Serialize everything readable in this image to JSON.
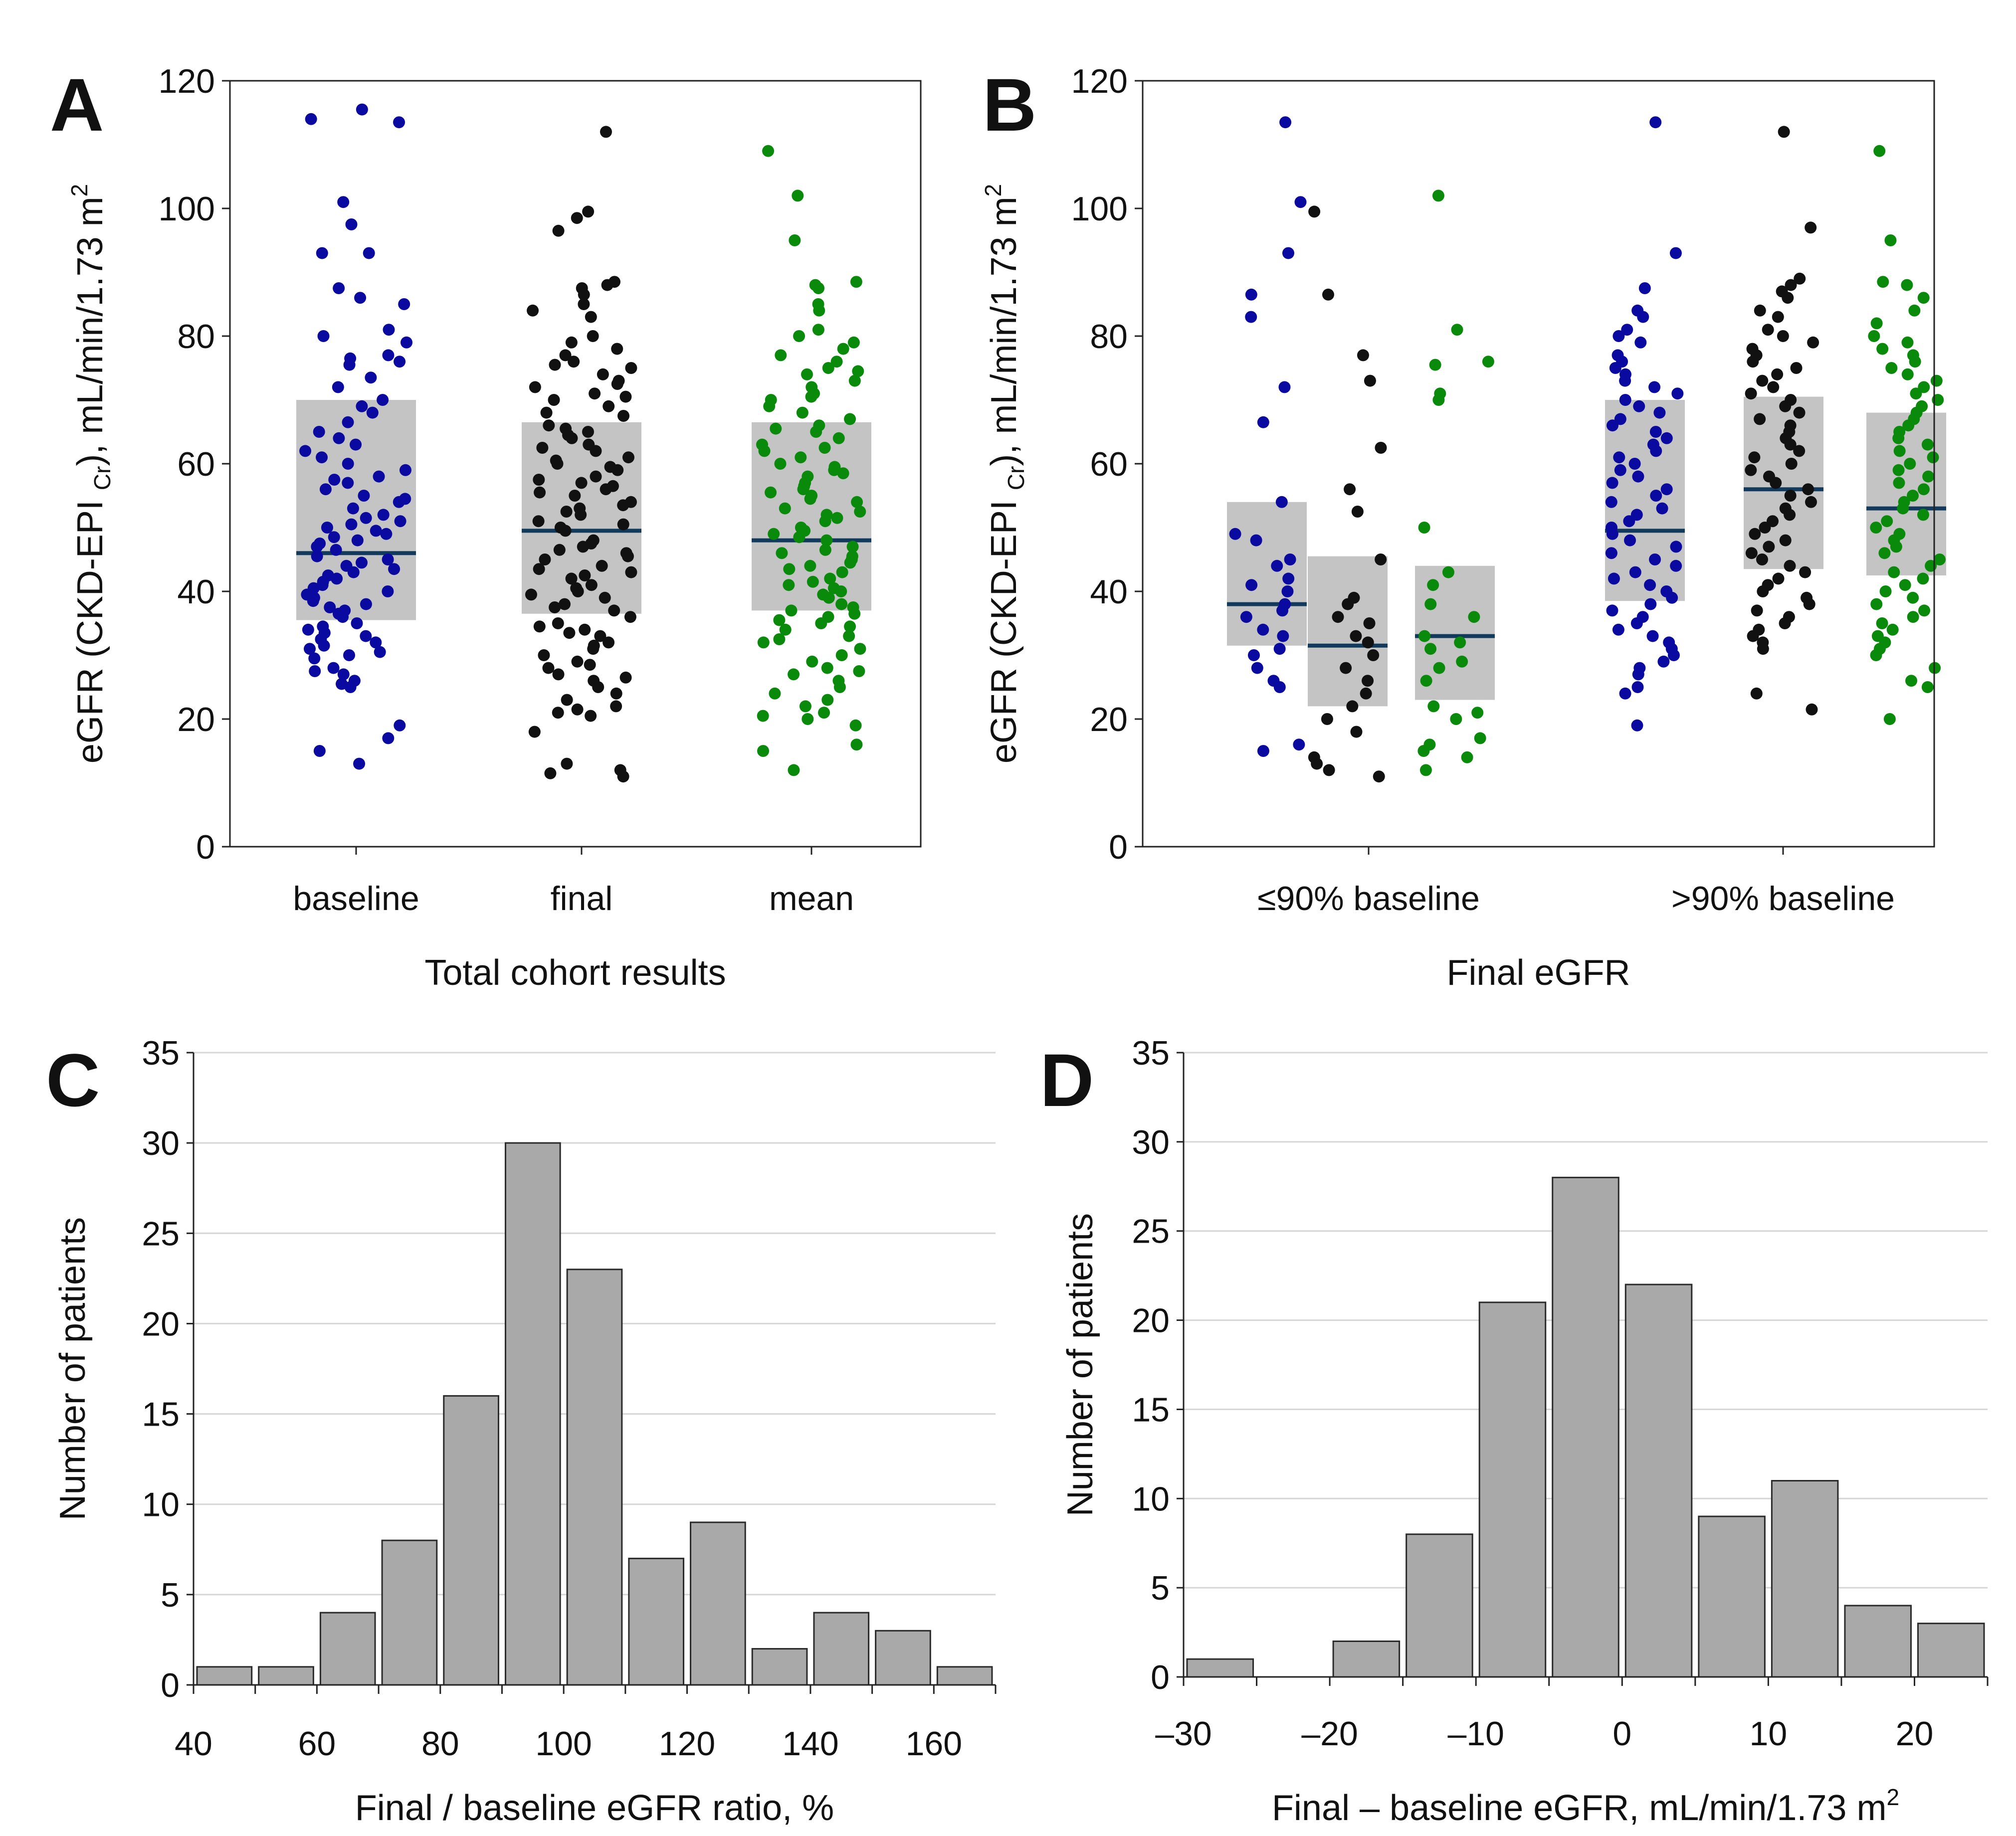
{
  "chart_data": [
    {
      "panel": "A",
      "type": "scatter",
      "title": "",
      "ylabel": "eGFR (CKD-EPI Cr), mL/min/1.73 m2",
      "ylabel_parts": {
        "pre": "eGFR (CKD-EPI ",
        "sub": "Cr",
        "mid": "), mL/min/1.73 m",
        "sup": "2"
      },
      "xlabel": "Total cohort results",
      "ylim": [
        0,
        120
      ],
      "yticks": [
        0,
        20,
        40,
        60,
        80,
        100,
        120
      ],
      "grid": false,
      "groups": [
        {
          "label": "baseline",
          "color": "#0a0aa0",
          "box": {
            "q1": 35.5,
            "median": 46,
            "q3": 70
          },
          "points": [
            113.5,
            114,
            115.5,
            101,
            97.5,
            93,
            93,
            87.5,
            86,
            85,
            81,
            80,
            79,
            77,
            76.5,
            76,
            75.5,
            73.5,
            72,
            70,
            69,
            68,
            66.5,
            65,
            64,
            63,
            62,
            61,
            60,
            59,
            58,
            57.5,
            57,
            56,
            55,
            54.5,
            54,
            53,
            52,
            51.5,
            51,
            50.5,
            50,
            49.5,
            49,
            48.5,
            48,
            47.5,
            47,
            46.5,
            45.5,
            45,
            44.5,
            44,
            43.5,
            43,
            42.5,
            42,
            41.5,
            41,
            40.5,
            40,
            39.5,
            39,
            38.5,
            38,
            37.5,
            37,
            36.5,
            36,
            35,
            34.5,
            34,
            33.5,
            33,
            32.5,
            32,
            31.5,
            31,
            30.5,
            30,
            29.5,
            28,
            27.5,
            27,
            26,
            25.5,
            25,
            19,
            17,
            15,
            13
          ]
        },
        {
          "label": "final",
          "color": "#111111",
          "box": {
            "q1": 36.5,
            "median": 49.5,
            "q3": 66.5
          },
          "points": [
            112,
            99.5,
            98.5,
            96.5,
            88.5,
            88,
            87.5,
            86.5,
            85,
            84,
            83,
            80,
            79,
            78,
            77,
            76,
            75.5,
            75,
            74,
            73,
            72.5,
            72,
            71,
            70.5,
            70,
            69,
            68,
            67.5,
            66,
            65.5,
            65,
            64.5,
            64,
            63,
            62.5,
            62,
            61,
            60.5,
            60,
            59.5,
            59,
            58,
            57.5,
            57,
            56.5,
            56,
            55.5,
            55,
            54,
            53.5,
            53,
            52.5,
            52,
            51,
            50.5,
            50,
            49.5,
            48,
            47.5,
            47,
            46.5,
            46,
            45.5,
            45,
            44,
            43.5,
            43,
            42.5,
            42,
            41,
            40.5,
            40,
            39.5,
            39,
            38,
            37.5,
            37,
            36,
            35,
            34.5,
            34,
            33.5,
            33,
            32,
            31.5,
            31,
            30,
            29,
            28.5,
            28,
            27,
            26.5,
            26,
            25,
            24,
            23,
            22,
            21.5,
            21,
            20.5,
            18,
            13,
            12,
            11.5,
            11
          ]
        },
        {
          "label": "mean",
          "color": "#0a8a0a",
          "box": {
            "q1": 37,
            "median": 48,
            "q3": 66.5
          },
          "points": [
            109,
            102,
            95,
            88.5,
            88,
            87.5,
            85,
            84,
            81,
            80,
            79,
            78,
            77,
            76,
            75,
            74.5,
            74,
            73,
            72,
            71,
            70.5,
            70,
            69,
            68,
            67,
            66,
            65.5,
            65,
            64,
            63,
            62.5,
            62,
            61,
            60,
            59.5,
            59,
            58.5,
            58,
            57,
            56.5,
            56,
            55.5,
            55,
            54.5,
            54,
            53,
            52.5,
            52,
            51.5,
            51,
            50,
            49.5,
            49,
            48.5,
            48,
            47,
            46.5,
            46,
            45.5,
            45,
            44.5,
            44,
            43.5,
            43,
            42,
            41.5,
            41,
            40.5,
            40,
            39.5,
            39,
            38,
            37.5,
            37,
            36.5,
            36,
            35.5,
            35,
            34.5,
            34,
            33,
            32.5,
            32,
            31,
            30,
            29,
            28,
            27.5,
            27,
            26,
            25,
            24,
            23,
            22,
            21,
            20.5,
            20,
            19,
            16,
            15,
            12
          ]
        }
      ]
    },
    {
      "panel": "B",
      "type": "scatter",
      "title": "",
      "ylabel": "eGFR (CKD-EPI Cr), mL/min/1.73 m2",
      "ylabel_parts": {
        "pre": "eGFR (CKD-EPI ",
        "sub": "Cr",
        "mid": "), mL/min/1.73 m",
        "sup": "2"
      },
      "xlabel": "Final eGFR",
      "ylim": [
        0,
        120
      ],
      "yticks": [
        0,
        20,
        40,
        60,
        80,
        100,
        120
      ],
      "grid": false,
      "categories": [
        "≤90% baseline",
        ">90% baseline"
      ],
      "groups": [
        {
          "category": 0,
          "label": "baseline",
          "color": "#0a0aa0",
          "box": {
            "q1": 31.5,
            "median": 38,
            "q3": 54
          },
          "points": [
            113.5,
            101,
            93,
            86.5,
            83,
            72,
            66.5,
            54,
            49,
            48,
            45,
            44,
            42,
            41,
            40,
            38,
            37,
            36,
            34,
            33,
            31,
            30,
            28,
            26,
            25,
            16,
            15
          ]
        },
        {
          "category": 0,
          "label": "final",
          "color": "#111111",
          "box": {
            "q1": 22,
            "median": 31.5,
            "q3": 45.5
          },
          "points": [
            99.5,
            86.5,
            77,
            73,
            62.5,
            56,
            52.5,
            45,
            39,
            38,
            36,
            35,
            33,
            32,
            30,
            28,
            26,
            24,
            22,
            20,
            18,
            14,
            13,
            12,
            11
          ]
        },
        {
          "category": 0,
          "label": "mean",
          "color": "#0a8a0a",
          "box": {
            "q1": 23,
            "median": 33,
            "q3": 44
          },
          "points": [
            102,
            81,
            76,
            75.5,
            71,
            70,
            50,
            43,
            41,
            38,
            36,
            33,
            32,
            31,
            29,
            28,
            26,
            22,
            21,
            20,
            17,
            16,
            15,
            14,
            12
          ]
        },
        {
          "category": 1,
          "label": "baseline",
          "color": "#0a0aa0",
          "box": {
            "q1": 38.5,
            "median": 49.5,
            "q3": 70
          },
          "points": [
            113.5,
            93,
            87.5,
            84,
            83,
            81,
            80,
            79,
            77,
            76,
            75,
            74,
            73,
            72,
            71,
            70,
            69,
            68,
            67,
            66,
            65,
            64,
            63,
            62,
            61,
            60,
            59,
            58,
            57,
            56,
            55,
            54,
            53,
            52,
            51,
            50,
            49,
            48,
            47,
            46,
            45,
            44,
            43,
            42,
            41,
            40,
            39,
            38,
            37,
            36,
            35,
            34,
            33,
            32,
            31,
            30,
            29,
            28,
            27,
            25,
            24,
            19
          ]
        },
        {
          "category": 1,
          "label": "final",
          "color": "#111111",
          "box": {
            "q1": 43.5,
            "median": 56,
            "q3": 70.5
          },
          "points": [
            112,
            97,
            89,
            88,
            87,
            86,
            84,
            83,
            81,
            80,
            79,
            78,
            77,
            76,
            75,
            74,
            73,
            72,
            71,
            70,
            69,
            68,
            67,
            66,
            65,
            64,
            63,
            62,
            61,
            60,
            59,
            58,
            57,
            56,
            55,
            54,
            53,
            52,
            51,
            50,
            49,
            48,
            47,
            46,
            45,
            44,
            43,
            42,
            41,
            40,
            39,
            38,
            37,
            36,
            35,
            34,
            33,
            32,
            31,
            24,
            21.5
          ]
        },
        {
          "category": 1,
          "label": "mean",
          "color": "#0a8a0a",
          "box": {
            "q1": 42.5,
            "median": 53,
            "q3": 68
          },
          "points": [
            109,
            95,
            88.5,
            88,
            86,
            84,
            82,
            80,
            79,
            78,
            77,
            76,
            75,
            74,
            73,
            72,
            71,
            70,
            69,
            68,
            67,
            66,
            65,
            64,
            63,
            62,
            61,
            60,
            59,
            58,
            57,
            56,
            55,
            54,
            53,
            52,
            51,
            50,
            49,
            48,
            47,
            46,
            45,
            44,
            43,
            42,
            41,
            40,
            39,
            38,
            37,
            36,
            35,
            34,
            33,
            32,
            31,
            30,
            28,
            26,
            25,
            20
          ]
        }
      ]
    },
    {
      "panel": "C",
      "type": "bar",
      "title": "",
      "xlabel": "Final / baseline eGFR ratio, %",
      "ylabel": "Number of patients",
      "bin_edges": [
        40,
        50,
        60,
        70,
        80,
        90,
        100,
        110,
        120,
        130,
        140,
        150,
        160,
        170
      ],
      "values": [
        1,
        1,
        4,
        8,
        16,
        30,
        23,
        7,
        9,
        2,
        4,
        3,
        1
      ],
      "xlim": [
        40,
        170
      ],
      "xticks": [
        40,
        60,
        80,
        100,
        120,
        140,
        160
      ],
      "ylim": [
        0,
        35
      ],
      "yticks": [
        0,
        5,
        10,
        15,
        20,
        25,
        30,
        35
      ],
      "grid": true,
      "bar_color": "#a9a9a9"
    },
    {
      "panel": "D",
      "type": "bar",
      "title": "",
      "xlabel": "Final – baseline eGFR, mL/min/1.73 m2",
      "xlabel_parts": {
        "pre": "Final – baseline eGFR, mL/min/1.73 m",
        "sup": "2"
      },
      "ylabel": "Number of patients",
      "bin_edges": [
        -30,
        -25,
        -20,
        -15,
        -10,
        -5,
        0,
        5,
        10,
        15,
        20,
        25
      ],
      "values": [
        1,
        0,
        2,
        8,
        21,
        28,
        22,
        9,
        11,
        4,
        3
      ],
      "xlim": [
        -30,
        25
      ],
      "xticks": [
        -30,
        -20,
        -10,
        0,
        10,
        20
      ],
      "xtick_labels": [
        "–30",
        "–20",
        "–10",
        "0",
        "10",
        "20"
      ],
      "ylim": [
        0,
        35
      ],
      "yticks": [
        0,
        5,
        10,
        15,
        20,
        25,
        30,
        35
      ],
      "grid": true,
      "bar_color": "#a9a9a9"
    }
  ]
}
